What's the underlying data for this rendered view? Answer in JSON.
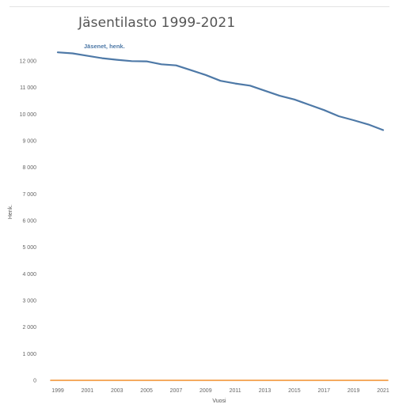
{
  "chart_data": {
    "type": "line",
    "title": "Jäsentilasto 1999-2021",
    "xlabel": "Vuosi",
    "ylabel": "Henk.",
    "x": [
      1999,
      2000,
      2001,
      2002,
      2003,
      2004,
      2005,
      2006,
      2007,
      2008,
      2009,
      2010,
      2011,
      2012,
      2013,
      2014,
      2015,
      2016,
      2017,
      2018,
      2019,
      2020,
      2021
    ],
    "x_ticks": [
      "1999",
      "2001",
      "2003",
      "2005",
      "2007",
      "2009",
      "2011",
      "2013",
      "2015",
      "2017",
      "2019",
      "2021"
    ],
    "y_ticks": [
      "0",
      "1 000",
      "2 000",
      "3 000",
      "4 000",
      "5 000",
      "6 000",
      "7 000",
      "8 000",
      "9 000",
      "10 000",
      "11 000",
      "12 000"
    ],
    "ylim": [
      0,
      12500
    ],
    "series": [
      {
        "name": "Jäsenet, henk.",
        "color": "#4e79a7",
        "values": [
          12320,
          12280,
          12190,
          12100,
          12040,
          11990,
          11980,
          11870,
          11830,
          11650,
          11470,
          11250,
          11150,
          11070,
          10880,
          10690,
          10550,
          10350,
          10150,
          9920,
          9770,
          9610,
          9400
        ]
      },
      {
        "name": "",
        "color": "#f28e2b",
        "values": [
          0,
          0,
          0,
          0,
          0,
          0,
          0,
          0,
          0,
          0,
          0,
          0,
          0,
          0,
          0,
          0,
          0,
          0,
          0,
          0,
          0,
          0,
          0
        ]
      }
    ],
    "grid": false,
    "gridline_color": "#eeeeee"
  }
}
